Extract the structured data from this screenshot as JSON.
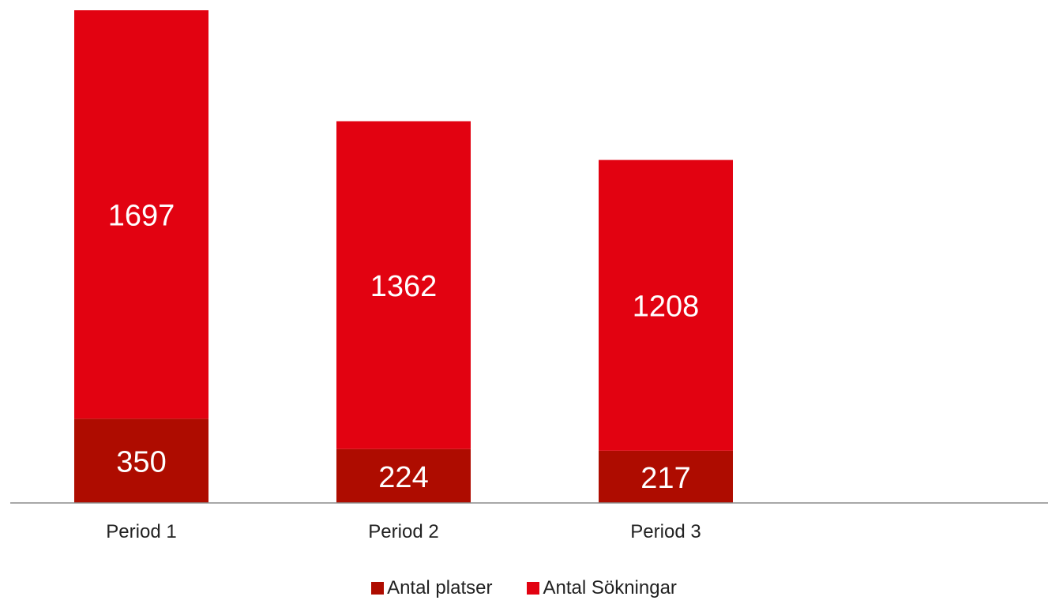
{
  "chart_data": {
    "type": "bar",
    "stacked": true,
    "categories": [
      "Period 1",
      "Period 2",
      "Period 3"
    ],
    "series": [
      {
        "name": "Antal platser",
        "values": [
          350,
          224,
          217
        ],
        "color": "#AE0C00"
      },
      {
        "name": "Antal Sökningar",
        "values": [
          1697,
          1362,
          1208
        ],
        "color": "#E20211"
      }
    ],
    "ylim": [
      0,
      2047
    ],
    "grid": false,
    "legend": "bottom-center",
    "data_labels": true
  }
}
